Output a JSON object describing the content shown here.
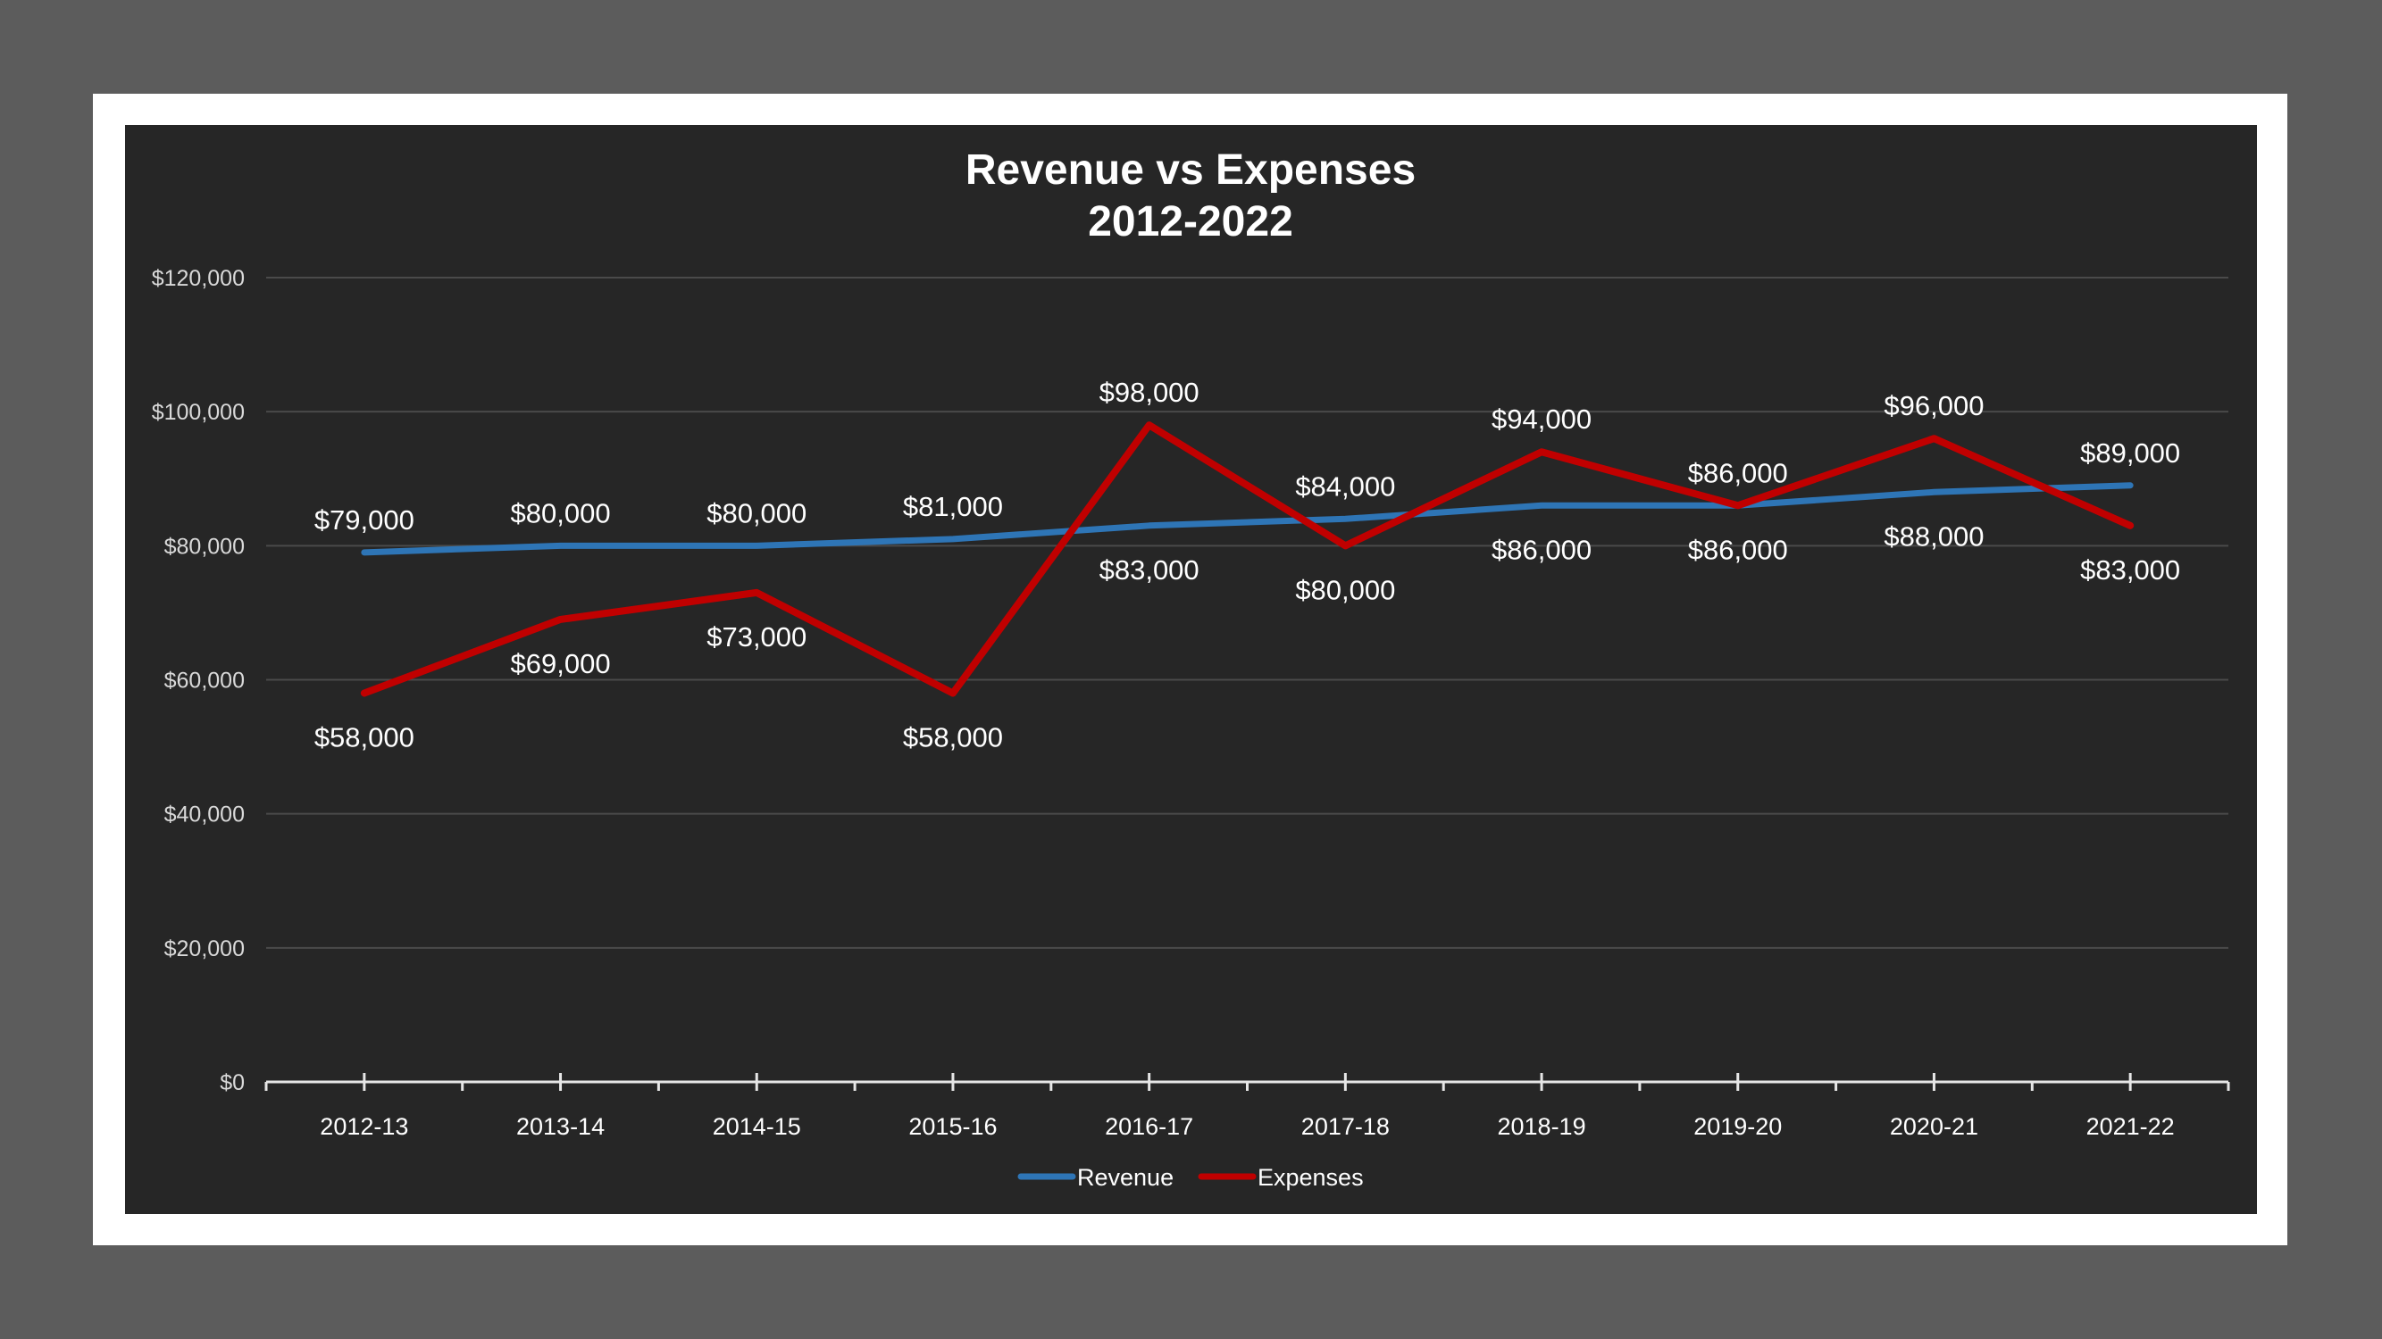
{
  "chart_data": {
    "type": "line",
    "title": [
      "Revenue vs Expenses",
      "2012-2022"
    ],
    "categories": [
      "2012-13",
      "2013-14",
      "2014-15",
      "2015-16",
      "2016-17",
      "2017-18",
      "2018-19",
      "2019-20",
      "2020-21",
      "2021-22"
    ],
    "ylim": [
      0,
      120000
    ],
    "yticks": [
      0,
      20000,
      40000,
      60000,
      80000,
      100000,
      120000
    ],
    "ytick_labels": [
      "$0",
      "$20,000",
      "$40,000",
      "$60,000",
      "$80,000",
      "$100,000",
      "$120,000"
    ],
    "grid": true,
    "legend_position": "bottom",
    "series": [
      {
        "name": "Revenue",
        "color": "#2e75b6",
        "values": [
          79000,
          80000,
          80000,
          81000,
          83000,
          84000,
          86000,
          86000,
          88000,
          89000
        ],
        "data_labels": [
          "$79,000",
          "$80,000",
          "$80,000",
          "$81,000",
          "$83,000",
          "$84,000",
          "$86,000",
          "$86,000",
          "$88,000",
          "$89,000"
        ]
      },
      {
        "name": "Expenses",
        "color": "#c00000",
        "values": [
          58000,
          69000,
          73000,
          58000,
          98000,
          80000,
          94000,
          86000,
          96000,
          83000
        ],
        "data_labels": [
          "$58,000",
          "$69,000",
          "$73,000",
          "$58,000",
          "$98,000",
          "$80,000",
          "$94,000",
          "$86,000",
          "$96,000",
          "$83,000"
        ]
      }
    ]
  }
}
